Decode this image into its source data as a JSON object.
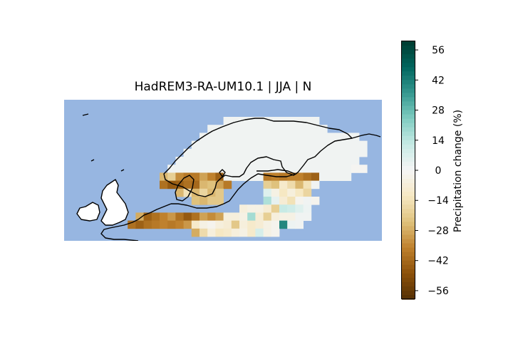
{
  "title": "HadREM3-RA-UM10.1 | JJA | N",
  "colorbar": {
    "label": "Precipitation change (%)",
    "ticks": [
      56,
      42,
      28,
      14,
      0,
      -14,
      -28,
      -42,
      -56
    ],
    "tick_labels": [
      "56",
      "42",
      "28",
      "14",
      "0",
      "−14",
      "−28",
      "−42",
      "−56"
    ],
    "range": [
      -60,
      60
    ],
    "colormap": "BrBG",
    "colors": [
      "#543005",
      "#8c510a",
      "#bf812d",
      "#dfc27d",
      "#f6e8c3",
      "#f5f5f5",
      "#c7eae5",
      "#80cdc1",
      "#35978f",
      "#01665e",
      "#003c30"
    ]
  },
  "map": {
    "region": "Northern Europe",
    "ocean_color": "#97b6e1",
    "no_data_color": "#ffffff"
  }
}
